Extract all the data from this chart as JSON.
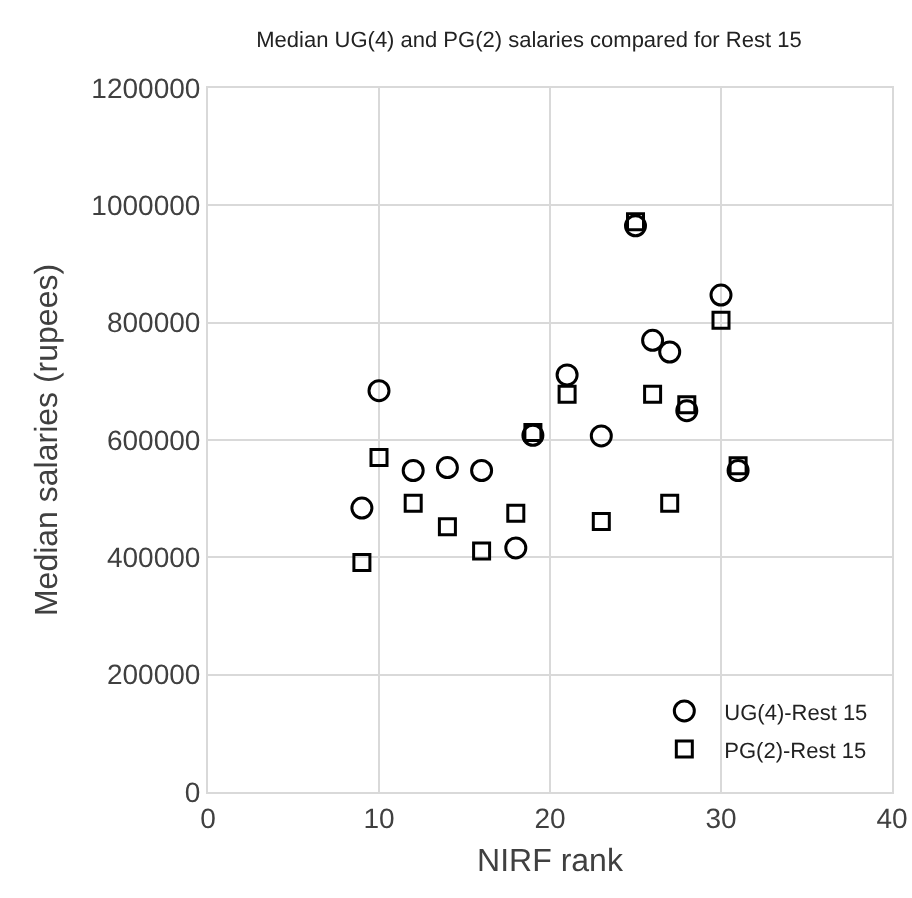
{
  "chart_data": {
    "type": "scatter",
    "title": "Median UG(4) and PG(2) salaries compared for Rest 15",
    "xlabel": "NIRF rank",
    "ylabel": "Median salaries (rupees)",
    "xlim": [
      0,
      40
    ],
    "xticks": [
      0,
      10,
      20,
      30,
      40
    ],
    "ylim": [
      0,
      1200000
    ],
    "yticks": [
      0,
      200000,
      400000,
      600000,
      800000,
      1000000,
      1200000
    ],
    "grid": true,
    "legend": "bottom right",
    "series": [
      {
        "name": "UG(4)-Rest 15",
        "color": "#000000",
        "marker": "circle",
        "x": [
          9,
          10,
          12,
          14,
          16,
          18,
          19,
          21,
          23,
          25,
          26,
          27,
          28,
          30,
          31
        ],
        "values": [
          484000,
          684000,
          548000,
          553000,
          548000,
          416000,
          608000,
          711000,
          607000,
          965000,
          770000,
          750000,
          650000,
          847000,
          548000
        ]
      },
      {
        "name": "PG(2)-Rest 15",
        "color": "#000000",
        "marker": "square",
        "x": [
          9,
          10,
          12,
          14,
          16,
          18,
          19,
          21,
          23,
          25,
          26,
          27,
          28,
          30,
          31
        ],
        "values": [
          391000,
          570000,
          492000,
          452000,
          411000,
          475000,
          613000,
          678000,
          461000,
          972000,
          678000,
          492000,
          660000,
          804000,
          556000
        ]
      }
    ]
  }
}
